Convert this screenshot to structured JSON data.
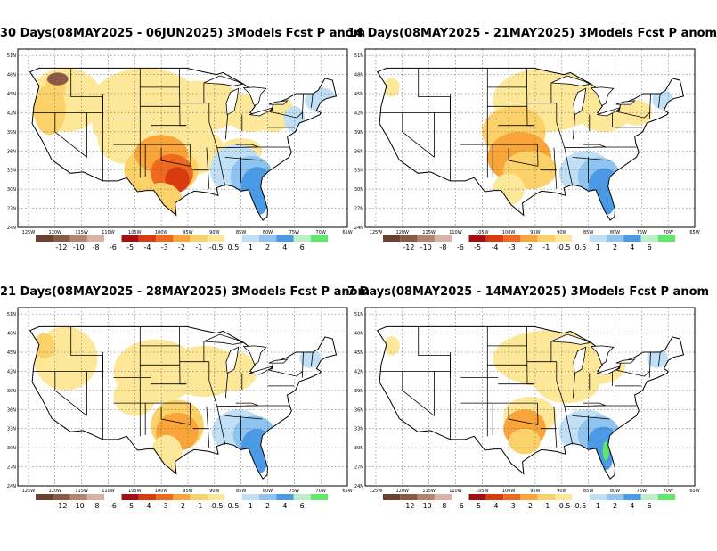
{
  "panels": [
    {
      "title": "30 Days(08MAY2025 - 06JUN2025) 3Models Fcst P anom",
      "pattern": "p30"
    },
    {
      "title": "14 Days(08MAY2025 - 21MAY2025) 3Models Fcst P anom",
      "pattern": "p14"
    },
    {
      "title": "21 Days(08MAY2025 - 28MAY2025) 3Models Fcst P anom",
      "pattern": "p21"
    },
    {
      "title": "7 Days(08MAY2025 - 14MAY2025) 3Models Fcst P anom",
      "pattern": "p7"
    }
  ],
  "lat_labels": [
    "51N",
    "48N",
    "45N",
    "42N",
    "39N",
    "36N",
    "33N",
    "30N",
    "27N",
    "24N"
  ],
  "lon_labels": [
    "125W",
    "120W",
    "115W",
    "110W",
    "105W",
    "100W",
    "95W",
    "90W",
    "85W",
    "80W",
    "75W",
    "70W",
    "65W"
  ],
  "colorbar": {
    "colors": [
      "#6b4231",
      "#8c5a44",
      "#b58370",
      "#d8b2a4",
      "#ffffff",
      "#a50f0f",
      "#d93a0f",
      "#f06a1e",
      "#f9a53a",
      "#fbd16a",
      "#fde89a",
      "#ffffff",
      "#c2e0f5",
      "#8fc3f0",
      "#4a9ae6",
      "#bfeecb",
      "#5fe86a"
    ],
    "labels": [
      "-12",
      "-10",
      "-8",
      "-6",
      "-5",
      "-4",
      "-3",
      "-2",
      "-1",
      "-0.5",
      "0.5",
      "1",
      "2",
      "4",
      "6"
    ]
  }
}
